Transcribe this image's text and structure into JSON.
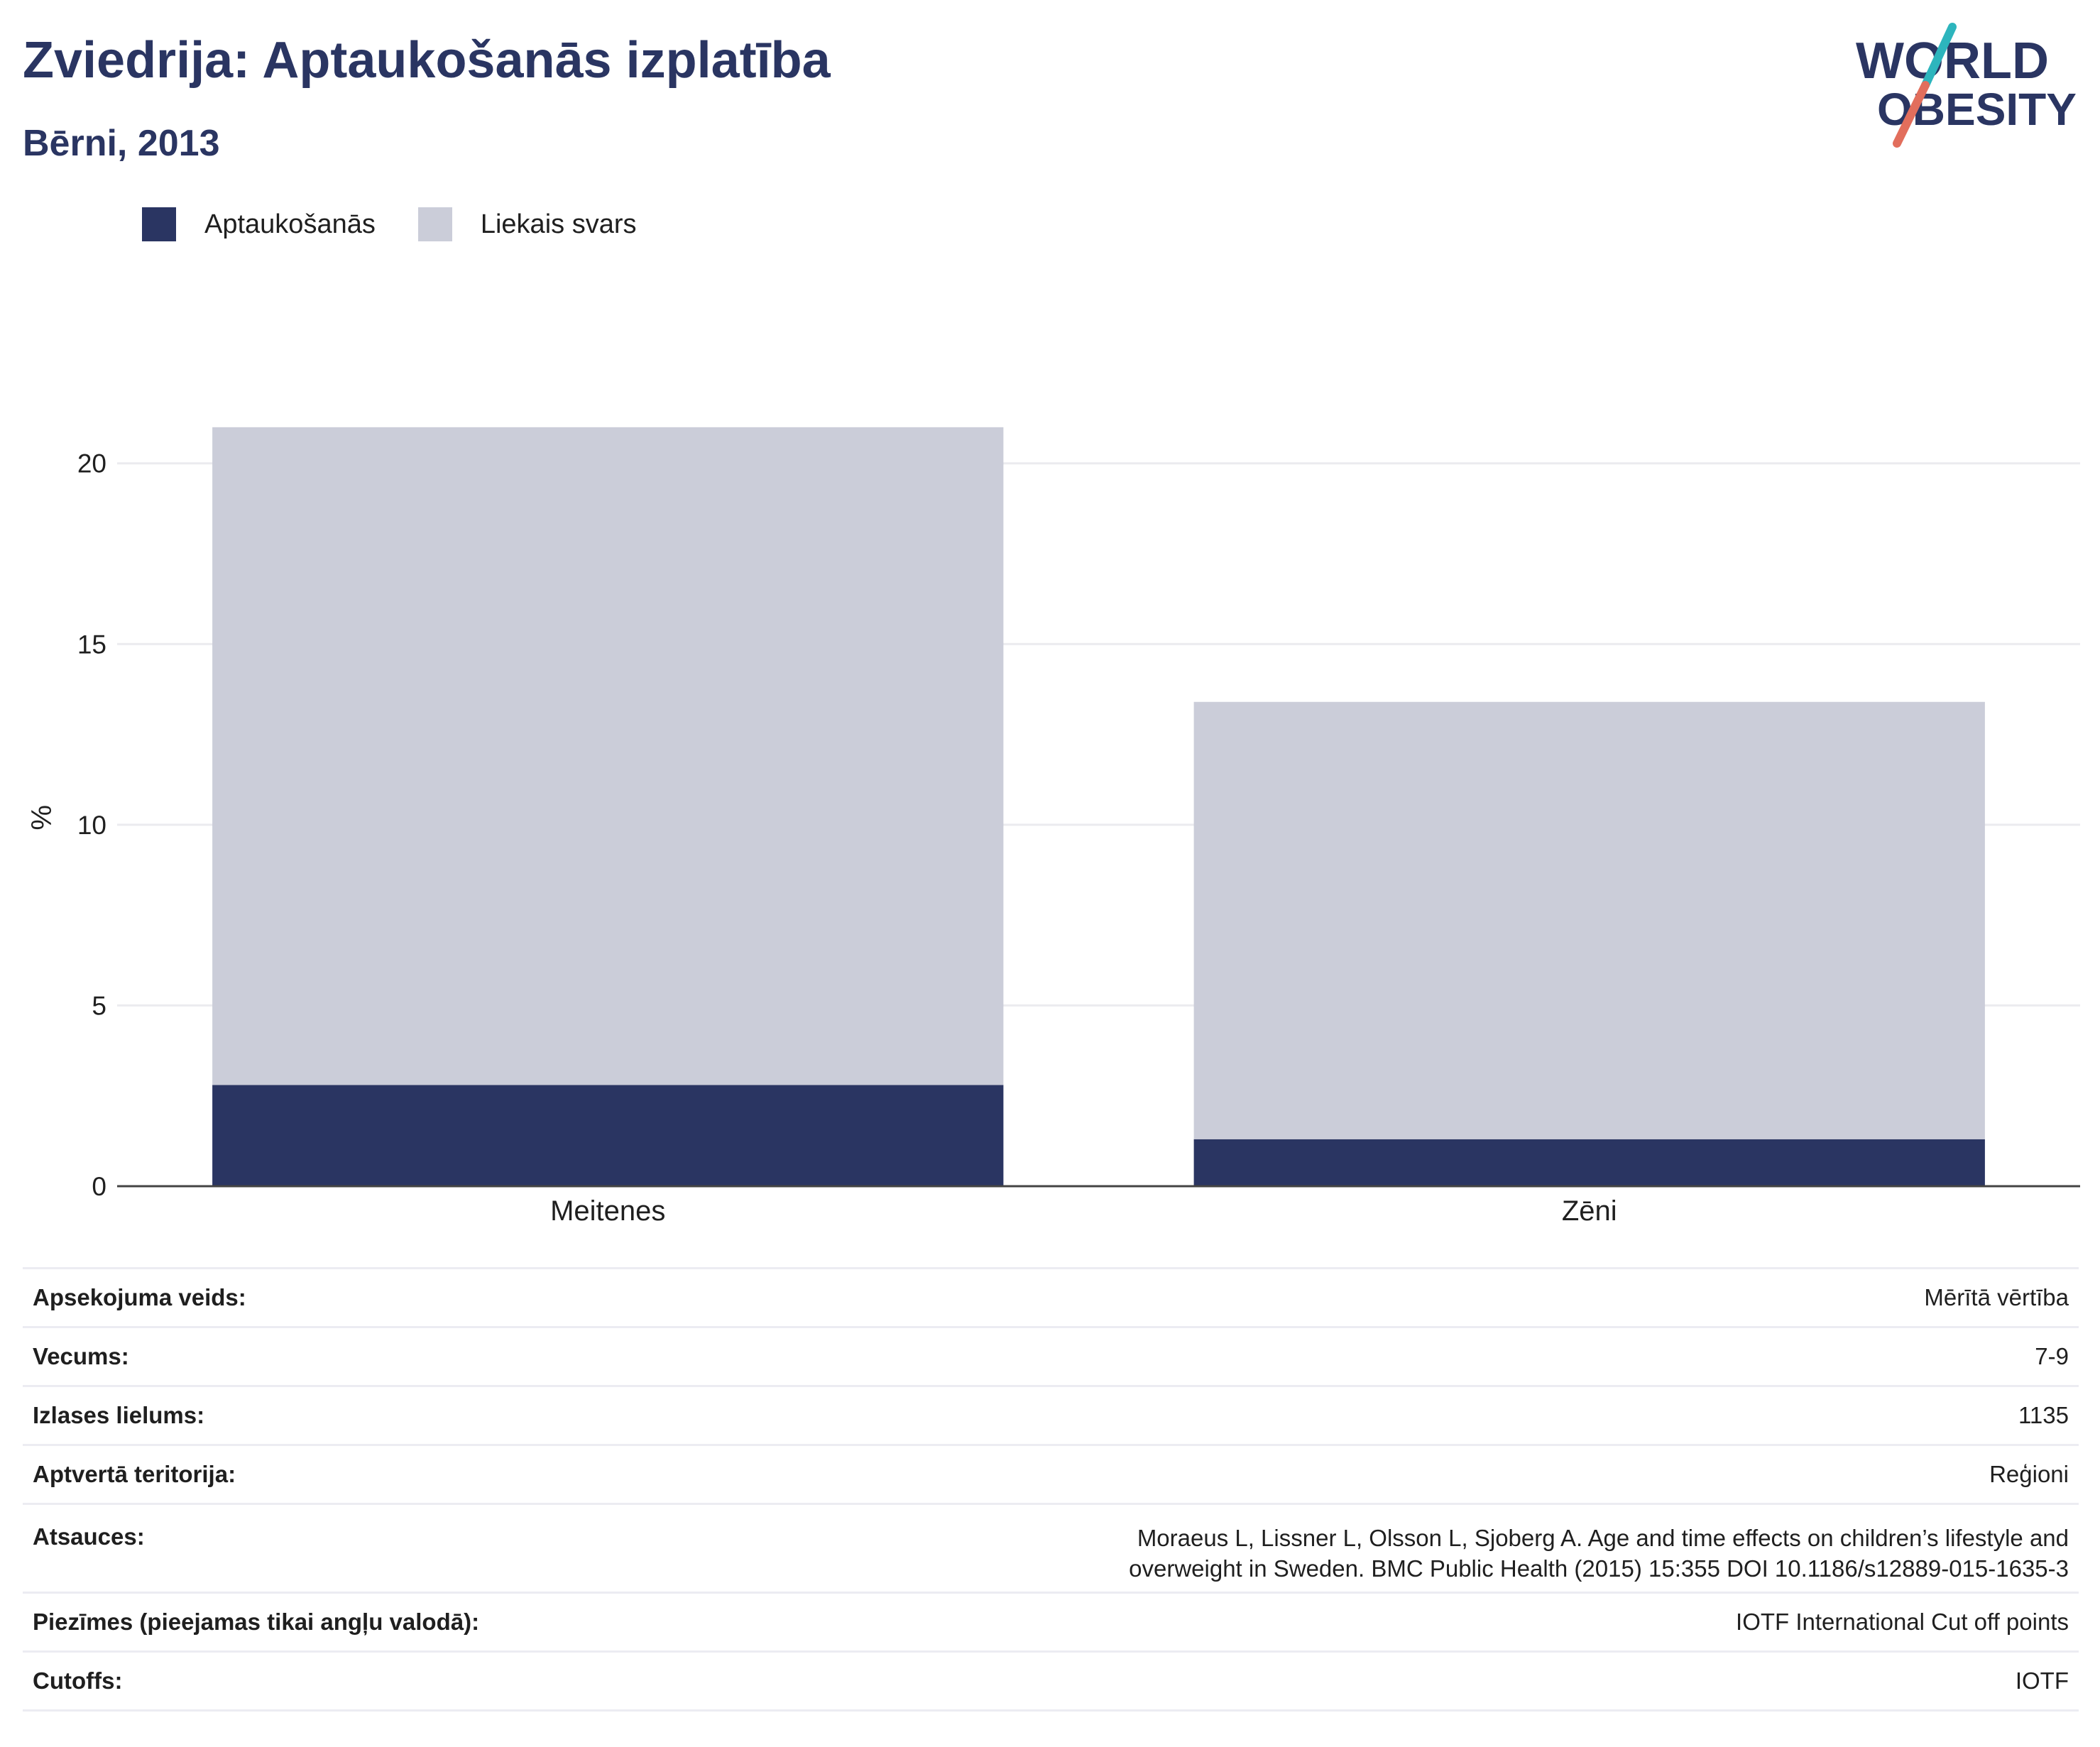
{
  "header": {
    "title": "Zviedrija: Aptaukošanās izplatība",
    "subtitle": "Bērni, 2013"
  },
  "logo": {
    "line1": "WORLD",
    "line2": "OBESITY"
  },
  "colors": {
    "obesity": "#2a3562",
    "overweight": "#cbcdd9",
    "title": "#2a3562",
    "logo_teal": "#2db5bd",
    "logo_coral": "#e26e5c"
  },
  "chart_data": {
    "type": "bar",
    "stacked": true,
    "categories": [
      "Meitenes",
      "Zēni"
    ],
    "series": [
      {
        "name": "Aptaukošanās",
        "values": [
          2.8,
          1.3
        ]
      },
      {
        "name": "Liekais svars",
        "values": [
          18.2,
          12.1
        ]
      }
    ],
    "title": "",
    "xlabel": "",
    "ylabel": "%",
    "ylim": [
      0,
      23
    ],
    "yticks": [
      0,
      5,
      10,
      15,
      20
    ],
    "grid": true,
    "legend_position": "top-left"
  },
  "info": [
    {
      "key": "Apsekojuma veids:",
      "value": "Mērītā vērtība"
    },
    {
      "key": "Vecums:",
      "value": "7-9"
    },
    {
      "key": "Izlases lielums:",
      "value": "1135"
    },
    {
      "key": "Aptvertā teritorija:",
      "value": "Reģioni"
    },
    {
      "key": "Atsauces:",
      "value": "Moraeus L, Lissner L, Olsson L, Sjoberg A. Age and time effects on children’s lifestyle and overweight in Sweden. BMC Public Health (2015) 15:355 DOI 10.1186/s12889-015-1635-3"
    },
    {
      "key": "Piezīmes (pieejamas tikai angļu valodā):",
      "value": "IOTF International Cut off points"
    },
    {
      "key": "Cutoffs:",
      "value": "IOTF"
    }
  ]
}
